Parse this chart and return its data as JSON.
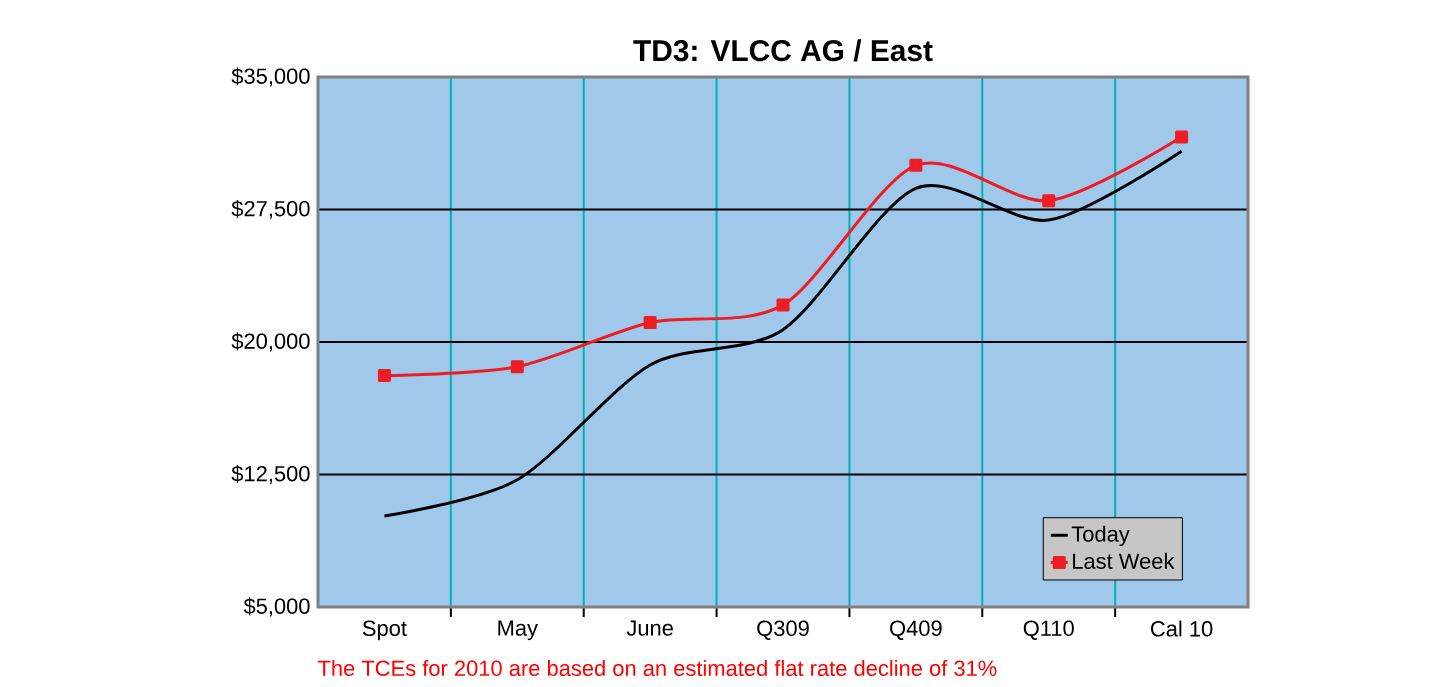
{
  "chart_data": {
    "type": "line",
    "title": "TD3:  VLCC AG / East",
    "categories": [
      "Spot",
      "May",
      "June",
      "Q309",
      "Q409",
      "Q110",
      "Cal 10"
    ],
    "series": [
      {
        "name": "Today",
        "color": "#000000",
        "marker": "none",
        "values": [
          10150,
          12200,
          18700,
          20700,
          28700,
          26900,
          30800
        ]
      },
      {
        "name": "Last Week",
        "color": "#ee1c24",
        "marker": "square",
        "values": [
          18100,
          18600,
          21100,
          22100,
          30000,
          28000,
          31600
        ]
      }
    ],
    "ylim": [
      5000,
      35000
    ],
    "yticks": [
      {
        "value": 5000,
        "label": "$5,000"
      },
      {
        "value": 12500,
        "label": "$12,500"
      },
      {
        "value": 20000,
        "label": "$20,000"
      },
      {
        "value": 27500,
        "label": "$27,500"
      },
      {
        "value": 35000,
        "label": "$35,000"
      }
    ],
    "grid": true,
    "legend": "bottom right",
    "line_style": "solid",
    "annotations": [
      "The TCEs for 2010 are based on an estimated flat rate decline of 31%"
    ]
  }
}
